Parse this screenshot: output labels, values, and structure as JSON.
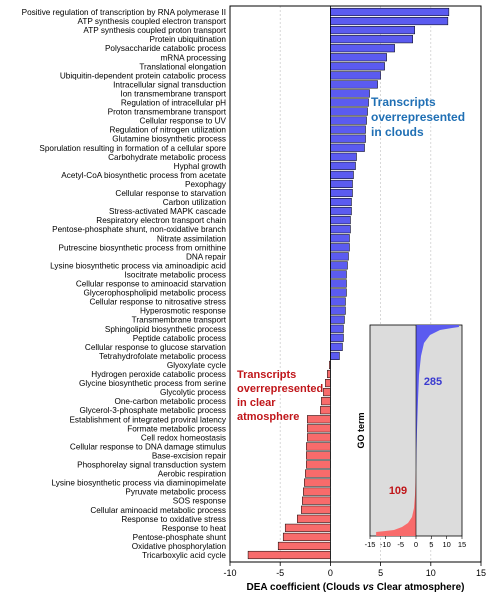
{
  "chart_data": {
    "type": "bar",
    "orientation": "horizontal",
    "xlabel": "DEA coefficient (Clouds vs Clear atmosphere)",
    "xlabel_parts": [
      "DEA coefficient (Clouds ",
      "vs",
      " Clear atmosphere)"
    ],
    "xlim": [
      -10,
      15
    ],
    "xticks": [
      -10,
      -5,
      0,
      5,
      10,
      15
    ],
    "grid": "vertical dashed",
    "colors": {
      "positive": "#5b5bf0",
      "negative": "#f86b6b"
    },
    "categories": [
      "Positive regulation of transcription by RNA polymerase II",
      "ATP synthesis coupled electron transport",
      "ATP synthesis coupled proton transport",
      "Protein ubiquitination",
      "Polysaccharide catabolic process",
      "mRNA processing",
      "Translational elongation",
      "Ubiquitin-dependent protein catabolic process",
      "Intracellular signal transduction",
      "Ion transmembrane transport",
      "Regulation of intracellular pH",
      "Proton transmembrane transport",
      "Cellular response to UV",
      "Regulation of nitrogen utilization",
      "Glutamine biosynthetic process",
      "Sporulation resulting in formation of a cellular spore",
      "Carbohydrate metabolic process",
      "Hyphal growth",
      "Acetyl-CoA biosynthetic process from acetate",
      "Pexophagy",
      "Cellular response to starvation",
      "Carbon utilization",
      "Stress-activated MAPK cascade",
      "Respiratory electron transport chain",
      "Pentose-phosphate shunt, non-oxidative branch",
      "Nitrate assimilation",
      "Putrescine biosynthetic process from ornithine",
      "DNA repair",
      "Lysine biosynthetic process via aminoadipic acid",
      "Isocitrate metabolic process",
      "Cellular response to aminoacid starvation",
      "Glycerophospholipid metabolic process",
      "Cellular response to nitrosative stress",
      "Hyperosmotic response",
      "Transmembrane transport",
      "Sphingolipid biosynthetic process",
      "Peptide catabolic process",
      "Cellular response to glucose starvation",
      "Tetrahydrofolate metabolic process",
      "Glyoxylate cycle",
      "Hydrogen peroxide catabolic process",
      "Glycine biosynthetic process from serine",
      "Glycolytic process",
      "One-carbon metabolic process",
      "Glycerol-3-phosphate metabolic process",
      "Establishment of integrated proviral latency",
      "Formate metabolic process",
      "Cell redox homeostasis",
      "Cellular response to DNA damage stimulus",
      "Base-excision repair",
      "Phosphorelay signal transduction system",
      "Aerobic respiration",
      "Lysine biosynthetic process via diaminopimelate",
      "Pyruvate metabolic process",
      "SOS response",
      "Cellular aminoacid metabolic process",
      "Response to oxidative stress",
      "Response to heat",
      "Pentose-phosphate shunt",
      "Oxidative phosphorylation",
      "Tricarboxylic acid cycle"
    ],
    "values": [
      11.8,
      11.7,
      8.4,
      8.2,
      6.4,
      5.6,
      5.4,
      5.0,
      4.7,
      3.9,
      3.8,
      3.7,
      3.6,
      3.5,
      3.5,
      3.4,
      2.6,
      2.5,
      2.3,
      2.2,
      2.2,
      2.1,
      2.1,
      2.0,
      2.0,
      1.9,
      1.9,
      1.8,
      1.7,
      1.6,
      1.6,
      1.6,
      1.5,
      1.5,
      1.4,
      1.3,
      1.3,
      1.2,
      0.9,
      -0.1,
      -0.3,
      -0.5,
      -0.7,
      -0.9,
      -1.0,
      -2.3,
      -2.3,
      -2.3,
      -2.4,
      -2.4,
      -2.4,
      -2.5,
      -2.6,
      -2.7,
      -2.8,
      -2.9,
      -3.3,
      -4.5,
      -4.7,
      -5.2,
      -8.2
    ],
    "annotations": [
      {
        "lines": [
          "Transcripts",
          "overrepresented",
          "in clouds"
        ],
        "color": "#1f6fb4"
      },
      {
        "lines": [
          "Transcripts",
          "overrepresented",
          "in clear",
          "atmosphere"
        ],
        "color": "#c0161a"
      }
    ],
    "inset": {
      "ylabel": "GO term",
      "xlim": [
        -15,
        15
      ],
      "xticks": [
        -15,
        -10,
        -5,
        0,
        5,
        10,
        15
      ],
      "positive_count": "285",
      "negative_count": "109",
      "background": "#dcdcdc"
    }
  }
}
